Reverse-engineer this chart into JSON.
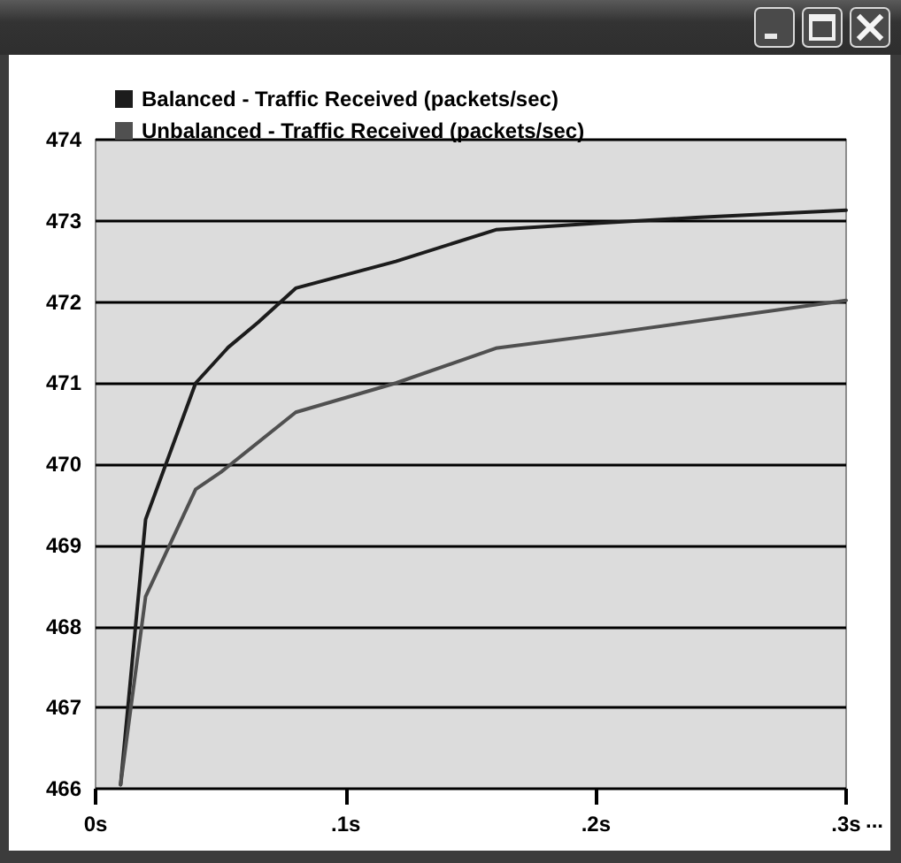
{
  "chart_data": {
    "type": "line",
    "series": [
      {
        "name": "Balanced - Traffic Received (packets/sec)",
        "color": "#1c1c1c",
        "x": [
          0.01,
          0.02,
          0.04,
          0.053,
          0.065,
          0.08,
          0.12,
          0.16,
          0.2,
          0.24,
          0.3
        ],
        "values": [
          466.05,
          469.32,
          471.0,
          471.44,
          471.75,
          472.17,
          472.5,
          472.89,
          472.97,
          473.04,
          473.13
        ]
      },
      {
        "name": "Unbalanced - Traffic Received (packets/sec)",
        "color": "#505050",
        "x": [
          0.01,
          0.02,
          0.04,
          0.05,
          0.08,
          0.12,
          0.16,
          0.2,
          0.3
        ],
        "values": [
          466.05,
          468.37,
          469.69,
          469.9,
          470.64,
          471.0,
          471.43,
          471.59,
          472.02
        ]
      }
    ],
    "xlim": [
      0,
      0.3
    ],
    "ylim": [
      466,
      474
    ],
    "xticks": [
      {
        "value": 0,
        "label": "0s"
      },
      {
        "value": 0.1,
        "label": ".1s"
      },
      {
        "value": 0.2,
        "label": ".2s"
      },
      {
        "value": 0.3,
        "label": ".3s"
      }
    ],
    "yticks": [
      466,
      467,
      468,
      469,
      470,
      471,
      472,
      473,
      474
    ],
    "grid": "y",
    "legend": "top left",
    "annotations": [
      "..."
    ]
  }
}
